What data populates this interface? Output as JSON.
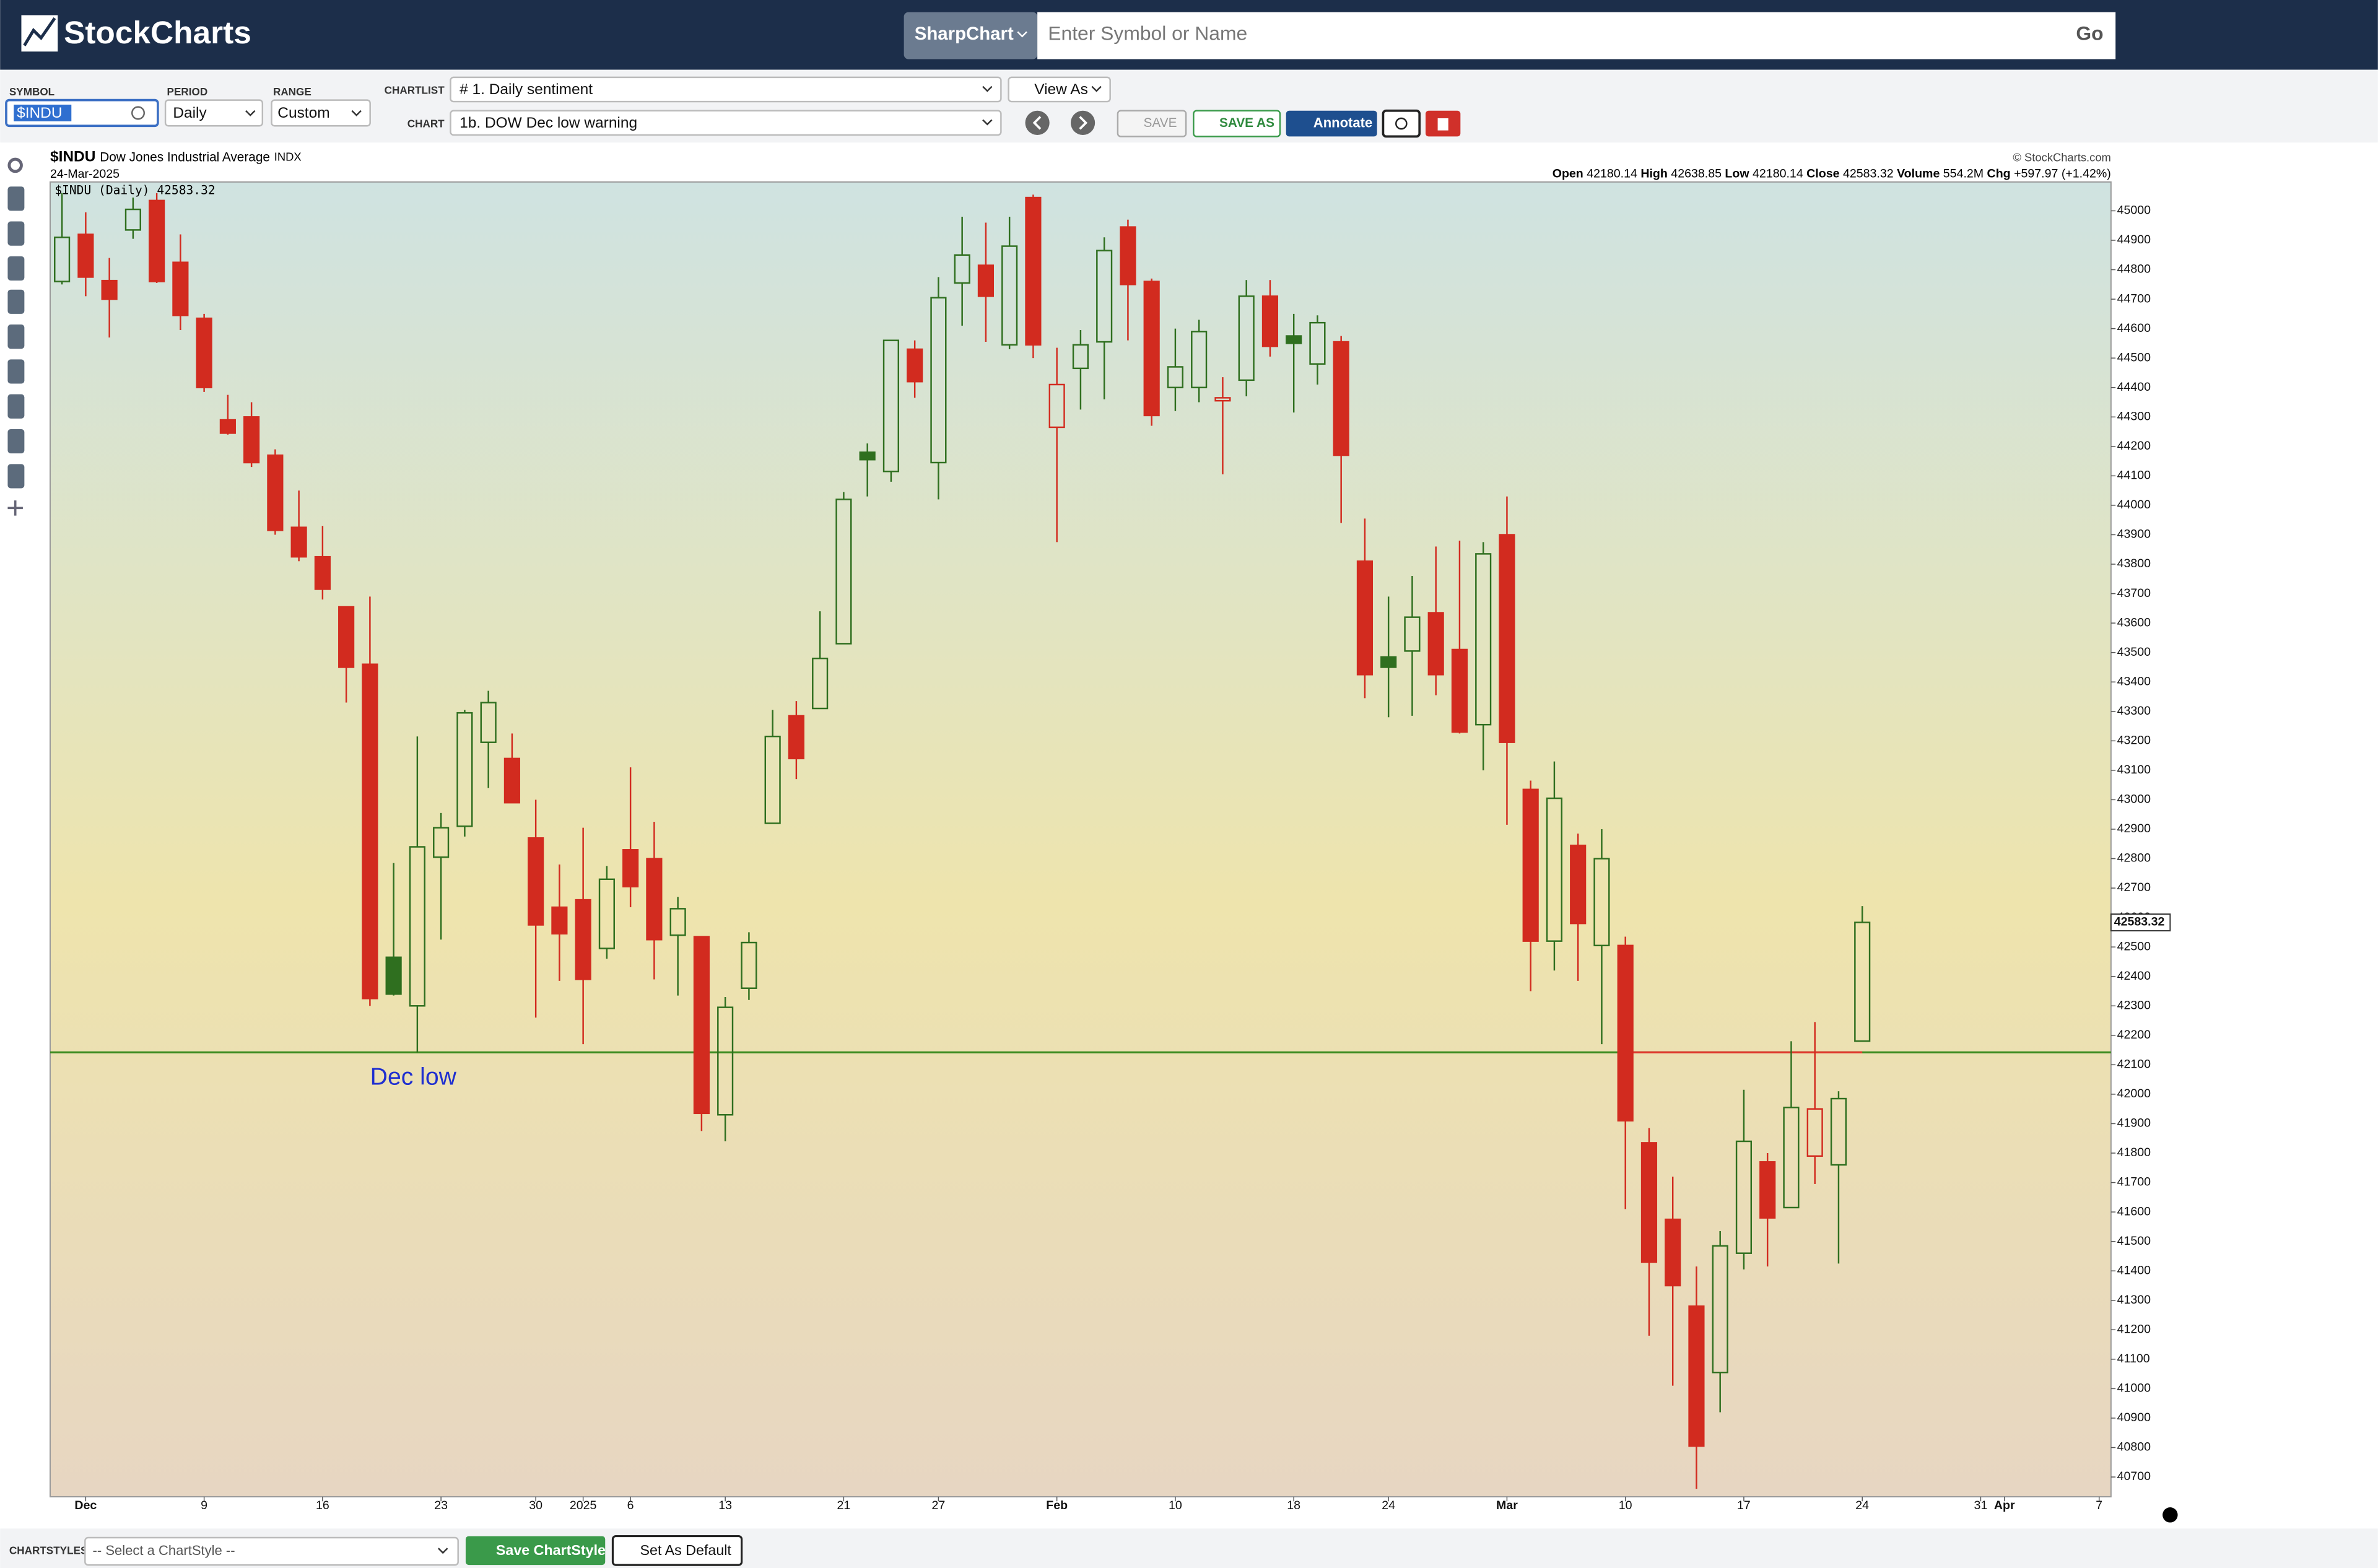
{
  "header": {
    "logo": "StockCharts",
    "search_type": "SharpChart",
    "search_placeholder": "Enter Symbol or Name",
    "go": "Go"
  },
  "toolbar": {
    "symbol_label": "SYMBOL",
    "symbol": "$INDU",
    "period_label": "PERIOD",
    "period": "Daily",
    "range_label": "RANGE",
    "range": "Custom",
    "chartlist_label": "CHARTLIST",
    "chartlist": "# 1. Daily sentiment",
    "view_as": "View As",
    "chart_label": "CHART",
    "chart": "1b. DOW Dec low warning",
    "save": "SAVE",
    "save_as": "SAVE AS",
    "annotate": "Annotate"
  },
  "chart_data": {
    "type": "candlestick",
    "symbol": "$INDU",
    "name": "Dow Jones Industrial Average",
    "exchange": "INDX",
    "date": "24-Mar-2025",
    "copyright": "© StockCharts.com",
    "legend": "$INDU (Daily)",
    "quote": {
      "open_label": "Open",
      "high_label": "High",
      "low_label": "Low",
      "close_label": "Close",
      "volume_label": "Volume",
      "volume": "554.2M",
      "chg_label": "Chg",
      "chg": "+597.97 (+1.42%)"
    },
    "up_color": "#2f6f1f",
    "down_color": "#d22b1f",
    "reference_line": {
      "value": 42142,
      "label": "Dec low",
      "color": "#3a8a1e",
      "break_color": "#e0342a",
      "label_color": "#1f2fd0"
    },
    "categories": [
      null,
      "Dec",
      null,
      null,
      null,
      null,
      "9",
      null,
      null,
      null,
      null,
      "16",
      null,
      null,
      null,
      null,
      "23",
      null,
      null,
      null,
      "30",
      null,
      "2025",
      null,
      "6",
      null,
      null,
      null,
      "13",
      null,
      null,
      null,
      null,
      "21",
      null,
      null,
      null,
      "27",
      null,
      null,
      null,
      null,
      "Feb",
      null,
      null,
      null,
      null,
      "10",
      null,
      null,
      null,
      null,
      "18",
      null,
      null,
      null,
      "24",
      null,
      null,
      null,
      null,
      "Mar",
      null,
      null,
      null,
      null,
      "10",
      null,
      null,
      null,
      null,
      "17",
      null,
      null,
      null,
      null,
      "24",
      null,
      null,
      null,
      null,
      "31",
      "Apr",
      null,
      null,
      null,
      "7"
    ],
    "open": [
      44760,
      44920,
      44763,
      44935,
      45035,
      44825,
      44635,
      44290,
      44300,
      44170,
      43925,
      43825,
      43655,
      43460,
      42465,
      42300,
      42805,
      42910,
      43195,
      43140,
      42870,
      42635,
      42660,
      42495,
      42830,
      42800,
      42540,
      42535,
      41930,
      42360,
      42920,
      43285,
      43310,
      43530,
      44180,
      44115,
      44530,
      44145,
      44755,
      44815,
      44545,
      45045,
      44265,
      44465,
      44555,
      44945,
      44760,
      44400,
      44400,
      44355,
      44425,
      44710,
      44575,
      44480,
      44555,
      43810,
      43485,
      43505,
      43635,
      43510,
      43255,
      43900,
      43035,
      42520,
      42845,
      42505,
      42505,
      41835,
      41575,
      41280,
      41055,
      41460,
      41770,
      41615,
      41790,
      41760,
      42180.14,
      null,
      null,
      null,
      null,
      null,
      null,
      null,
      null,
      null,
      null
    ],
    "high": [
      45060,
      44995,
      44840,
      45045,
      45060,
      44920,
      44650,
      44375,
      44350,
      44190,
      44050,
      43930,
      43655,
      43690,
      42785,
      43215,
      42955,
      43305,
      43370,
      43225,
      43000,
      42780,
      42905,
      42775,
      43110,
      42925,
      42670,
      42535,
      42330,
      42550,
      43305,
      43335,
      43640,
      44045,
      44210,
      44560,
      44560,
      44775,
      44980,
      44960,
      44980,
      45055,
      44535,
      44595,
      44910,
      44970,
      44770,
      44600,
      44630,
      44435,
      44765,
      44765,
      44650,
      44645,
      44575,
      43955,
      43690,
      43760,
      43860,
      43880,
      43875,
      44030,
      43065,
      43130,
      42885,
      42900,
      42535,
      41885,
      41720,
      41415,
      41535,
      42015,
      41800,
      42180,
      42245,
      42010,
      42638.85,
      null,
      null,
      null,
      null,
      null,
      null,
      null,
      null,
      null,
      null
    ],
    "low": [
      44750,
      44710,
      44570,
      44905,
      44755,
      44595,
      44385,
      44240,
      44130,
      43900,
      43810,
      43680,
      43330,
      42300,
      42335,
      42142,
      42525,
      42875,
      43040,
      42990,
      42260,
      42385,
      42170,
      42460,
      42635,
      42390,
      42335,
      41875,
      41840,
      42320,
      42920,
      43070,
      43310,
      43530,
      44030,
      44080,
      44365,
      44020,
      44610,
      44555,
      44530,
      44500,
      43875,
      44325,
      44360,
      44560,
      44270,
      44320,
      44350,
      44105,
      44370,
      44505,
      44315,
      44410,
      43940,
      43345,
      43280,
      43285,
      43355,
      43225,
      43100,
      42915,
      42350,
      42420,
      42385,
      42170,
      41610,
      41180,
      41010,
      40660,
      40920,
      41405,
      41415,
      41615,
      41695,
      41425,
      42180.14,
      null,
      null,
      null,
      null,
      null,
      null,
      null,
      null,
      null,
      null
    ],
    "close": [
      44910,
      44775,
      44700,
      45005,
      44760,
      44645,
      44400,
      44245,
      44145,
      43915,
      43825,
      43715,
      43450,
      42325,
      42340,
      42840,
      42905,
      43295,
      43330,
      42990,
      42575,
      42545,
      42390,
      42730,
      42705,
      42525,
      42630,
      41935,
      42295,
      42515,
      43215,
      43140,
      43480,
      44020,
      44155,
      44560,
      44420,
      44705,
      44850,
      44710,
      44880,
      44545,
      44410,
      44545,
      44865,
      44750,
      44305,
      44470,
      44590,
      44365,
      44710,
      44540,
      44550,
      44620,
      44170,
      43425,
      43450,
      43620,
      43425,
      43230,
      43835,
      43195,
      42520,
      43005,
      42580,
      42800,
      41910,
      41430,
      41350,
      40805,
      41485,
      41840,
      41580,
      41955,
      41950,
      41985,
      42583.32,
      null,
      null,
      null,
      null,
      null,
      null,
      null,
      null,
      null,
      null
    ],
    "ylim": [
      40633,
      45098
    ],
    "yticks": [
      40700,
      40800,
      40900,
      41000,
      41100,
      41200,
      41300,
      41400,
      41500,
      41600,
      41700,
      41800,
      41900,
      42000,
      42100,
      42200,
      42300,
      42400,
      42500,
      42600,
      42700,
      42800,
      42900,
      43000,
      43100,
      43200,
      43300,
      43400,
      43500,
      43600,
      43700,
      43800,
      43900,
      44000,
      44100,
      44200,
      44300,
      44400,
      44500,
      44600,
      44700,
      44800,
      44900,
      45000
    ]
  },
  "footer": {
    "chartstyles_label": "CHARTSTYLES",
    "select": "-- Select a ChartStyle --",
    "save_style": "Save ChartStyle",
    "set_default": "Set As Default"
  }
}
